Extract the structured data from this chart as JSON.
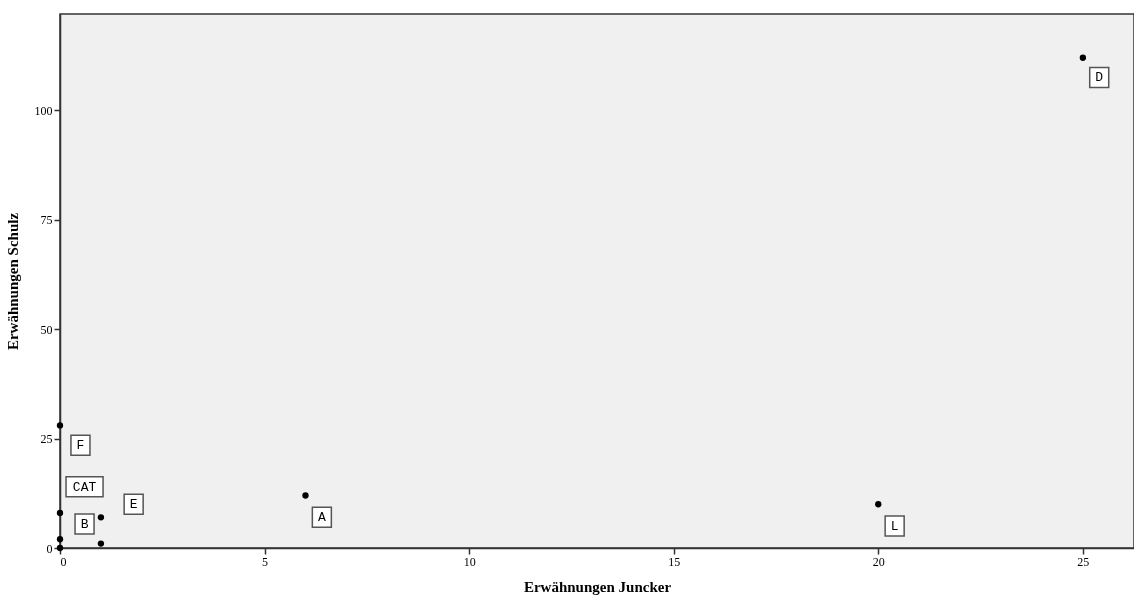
{
  "chart_data": {
    "type": "scatter",
    "xlabel": "Erwähnungen Juncker",
    "ylabel": "Erwähnungen Schulz",
    "x": [
      0,
      0,
      0,
      0,
      1,
      1,
      6,
      20,
      25
    ],
    "series": [
      {
        "color": "#000000",
        "values": [
          0,
          2,
          8,
          28,
          7,
          1,
          12,
          10,
          112
        ]
      }
    ],
    "xlim": [
      0,
      26.25
    ],
    "ylim": [
      0,
      122
    ],
    "xticks": [
      0,
      5,
      10,
      15,
      20,
      25
    ],
    "yticks": [
      0,
      25,
      50,
      75,
      100
    ],
    "grid": false,
    "marker": "circle",
    "annotations": [
      {
        "text": "F",
        "x": 0.5,
        "y": 23.5
      },
      {
        "text": "CAT",
        "x": 0.6,
        "y": 14
      },
      {
        "text": "E",
        "x": 1.8,
        "y": 10
      },
      {
        "text": "B",
        "x": 0.6,
        "y": 5.5
      },
      {
        "text": "A",
        "x": 6.4,
        "y": 7
      },
      {
        "text": "L",
        "x": 20.4,
        "y": 5
      },
      {
        "text": "D",
        "x": 25.4,
        "y": 107.5
      }
    ]
  }
}
